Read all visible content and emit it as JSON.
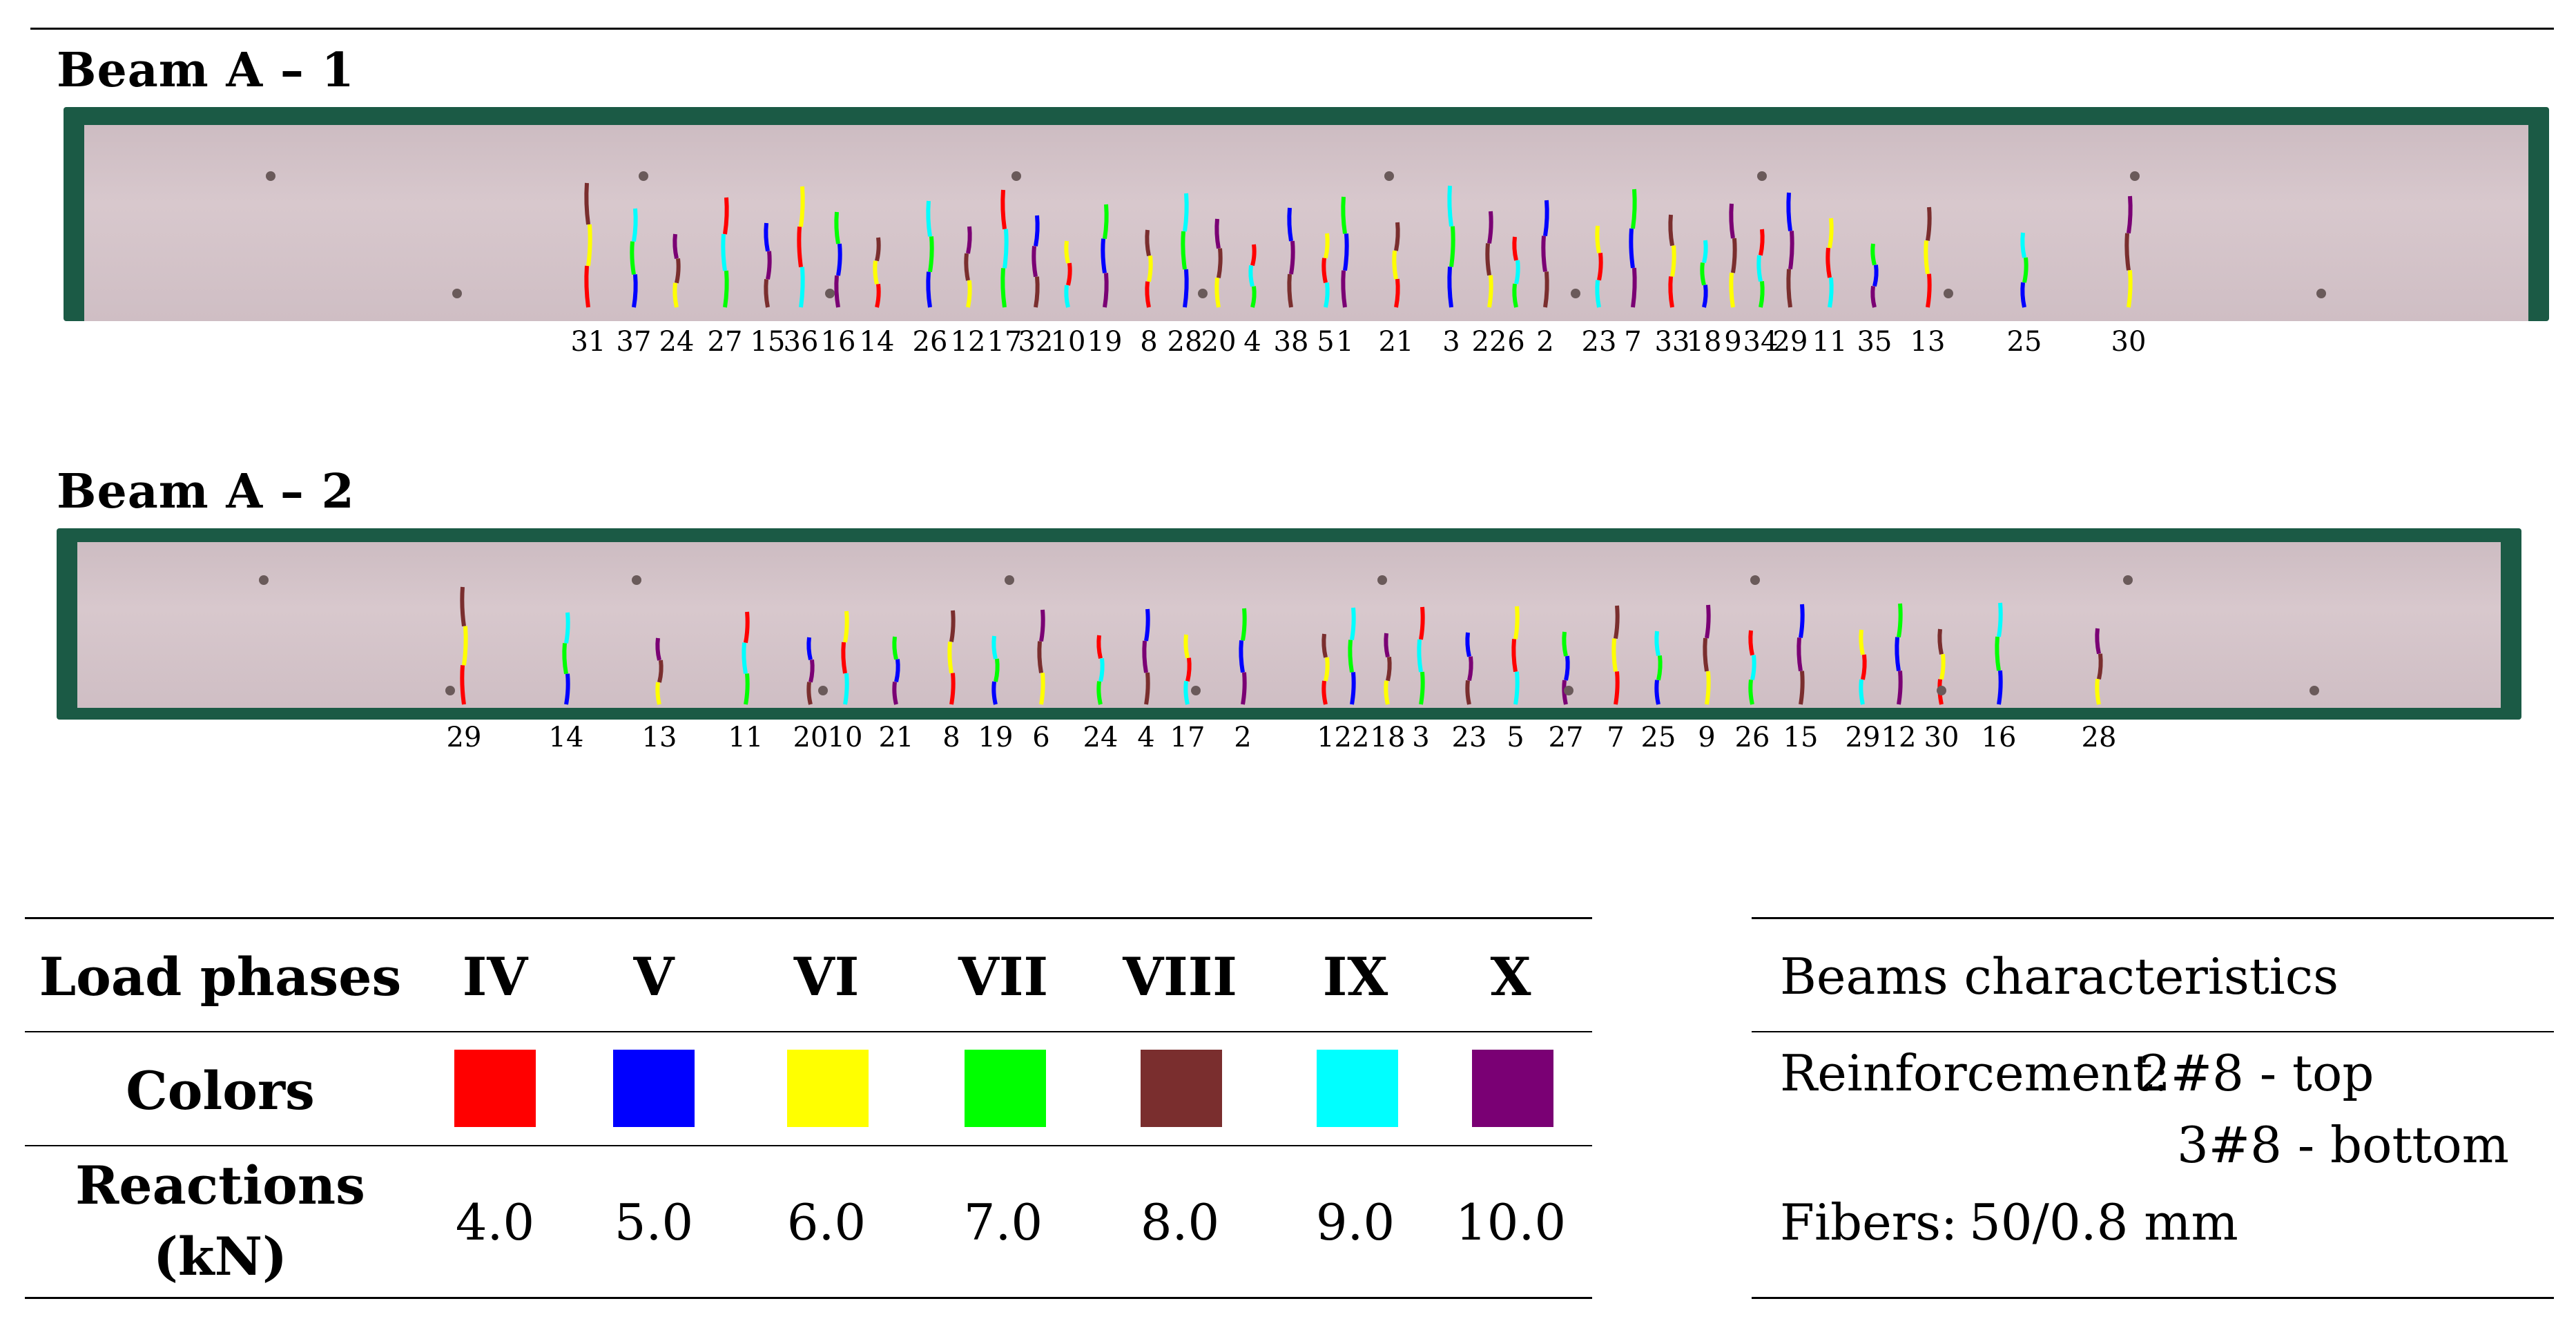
{
  "beams": [
    {
      "title": "Beam  A – 1",
      "crack_numbers": [
        "31",
        "37",
        "24",
        "27",
        "15",
        "36",
        "16",
        "14",
        "26",
        "12",
        "17",
        "32",
        "10",
        "19",
        "8",
        "28",
        "20",
        "4",
        "38",
        "5",
        "1",
        "21",
        "3",
        "22",
        "6",
        "2",
        "23",
        "7",
        "33",
        "18",
        "9",
        "34",
        "29",
        "11",
        "35",
        "13",
        "25",
        "30"
      ]
    },
    {
      "title": "Beam  A – 2",
      "crack_numbers": [
        "29",
        "14",
        "13",
        "11",
        "20",
        "10",
        "21",
        "8",
        "19",
        "6",
        "24",
        "4",
        "17",
        "2",
        "1",
        "22",
        "18",
        "3",
        "23",
        "5",
        "27",
        "7",
        "25",
        "9",
        "26",
        "15",
        "29",
        "12",
        "30",
        "16",
        "28"
      ]
    }
  ],
  "legend": {
    "header_label": "Load phases",
    "colors_label": "Colors",
    "reactions_label": "Reactions",
    "reactions_unit": "(kN)",
    "phases": [
      {
        "phase": "IV",
        "color": "#ff0000",
        "reaction": "4.0"
      },
      {
        "phase": "V",
        "color": "#0000ff",
        "reaction": "5.0"
      },
      {
        "phase": "VI",
        "color": "#ffff00",
        "reaction": "6.0"
      },
      {
        "phase": "VII",
        "color": "#00ff00",
        "reaction": "7.0"
      },
      {
        "phase": "VIII",
        "color": "#7a2e2e",
        "reaction": "8.0"
      },
      {
        "phase": "IX",
        "color": "#00ffff",
        "reaction": "9.0"
      },
      {
        "phase": "X",
        "color": "#7a0074",
        "reaction": "10.0"
      }
    ]
  },
  "characteristics": {
    "title": "Beams characteristics",
    "reinforcement_label": "Reinforcement:",
    "reinforcement_top": "2#8 - top",
    "reinforcement_bottom": "3#8 - bottom",
    "fibers_label": "Fibers:",
    "fibers_value": "50/0.8 mm"
  }
}
